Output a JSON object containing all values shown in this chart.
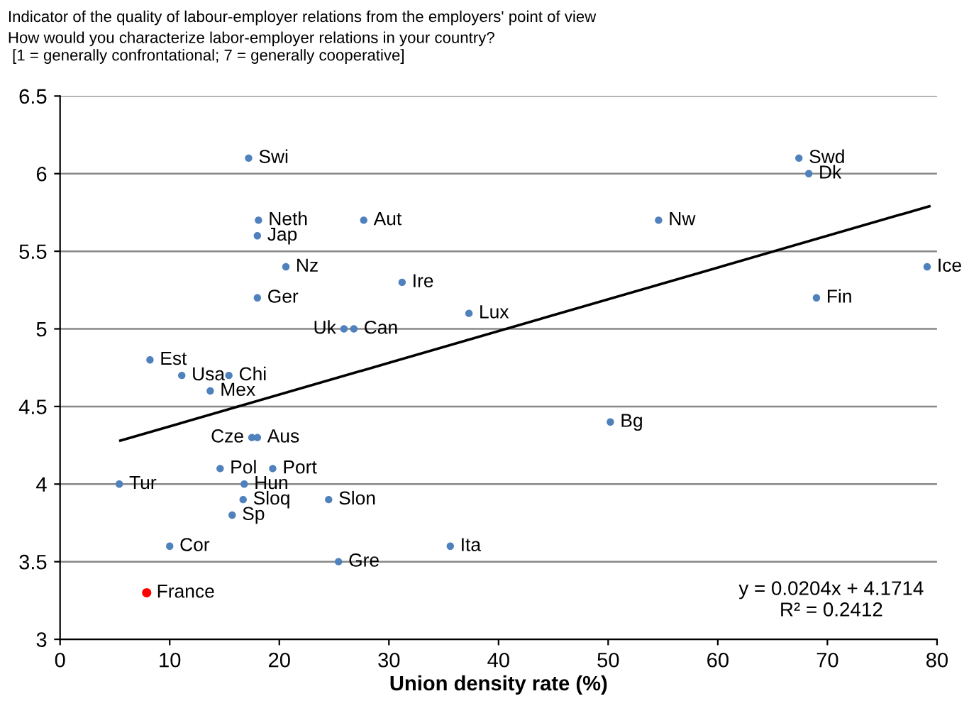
{
  "chart_data": {
    "type": "scatter",
    "title": "Indicator of the quality of labour-employer relations from the employers' point of view",
    "subtitle": "How would you characterize labor-employer relations in your country?\n [1 = generally confrontational; 7 = generally cooperative]",
    "xlabel": "Union density rate (%)",
    "xlim": [
      0,
      80
    ],
    "xticks": [
      0,
      10,
      20,
      30,
      40,
      50,
      60,
      70,
      80
    ],
    "ylim": [
      3,
      6.5
    ],
    "yticks": [
      3,
      3.5,
      4,
      4.5,
      5,
      5.5,
      6,
      6.5
    ],
    "grid": "y",
    "marker": "circle",
    "legend": false,
    "series": [
      {
        "color": "#4f81bd",
        "x": [
          17.2,
          67.4,
          68.3,
          18.1,
          27.7,
          54.6,
          18.0,
          20.6,
          79.1,
          31.2,
          18.0,
          69.0,
          37.3,
          25.9,
          26.8,
          8.2,
          11.1,
          15.4,
          13.7,
          50.2,
          17.5,
          18.0,
          14.6,
          19.4,
          5.4,
          16.8,
          16.7,
          24.5,
          15.7,
          10.0,
          35.6,
          25.4
        ],
        "values": [
          6.1,
          6.1,
          6.0,
          5.7,
          5.7,
          5.7,
          5.6,
          5.4,
          5.4,
          5.3,
          5.2,
          5.2,
          5.1,
          5.0,
          5.0,
          4.8,
          4.7,
          4.7,
          4.6,
          4.4,
          4.3,
          4.3,
          4.1,
          4.1,
          4.0,
          4.0,
          3.9,
          3.9,
          3.8,
          3.6,
          3.6,
          3.5
        ]
      },
      {
        "color": "#ff0000",
        "x": [
          7.9
        ],
        "values": [
          3.3
        ]
      },
      {
        "type": "line",
        "color": "#000000",
        "line_style": "solid",
        "marker": "none",
        "x": [
          5.5,
          79.3
        ],
        "values": [
          4.28,
          5.79
        ]
      }
    ],
    "annotations": [
      {
        "text": "Swi",
        "x": 17.2,
        "y": 6.1
      },
      {
        "text": "Swd",
        "x": 67.4,
        "y": 6.1
      },
      {
        "text": "Dk",
        "x": 68.3,
        "y": 6.0
      },
      {
        "text": "Neth",
        "x": 18.1,
        "y": 5.7
      },
      {
        "text": "Aut",
        "x": 27.7,
        "y": 5.7
      },
      {
        "text": "Nw",
        "x": 54.6,
        "y": 5.7
      },
      {
        "text": "Jap",
        "x": 18.0,
        "y": 5.6
      },
      {
        "text": "Nz",
        "x": 20.6,
        "y": 5.4
      },
      {
        "text": "Ice",
        "x": 79.1,
        "y": 5.4
      },
      {
        "text": "Ire",
        "x": 31.2,
        "y": 5.3
      },
      {
        "text": "Ger",
        "x": 18.0,
        "y": 5.2
      },
      {
        "text": "Fin",
        "x": 69.0,
        "y": 5.2
      },
      {
        "text": "Lux",
        "x": 37.3,
        "y": 5.1
      },
      {
        "text": "Uk",
        "x": 25.9,
        "y": 5.0
      },
      {
        "text": "Can",
        "x": 26.8,
        "y": 5.0
      },
      {
        "text": "Est",
        "x": 8.2,
        "y": 4.8
      },
      {
        "text": "Usa",
        "x": 11.1,
        "y": 4.7
      },
      {
        "text": "Chi",
        "x": 15.4,
        "y": 4.7
      },
      {
        "text": "Mex",
        "x": 13.7,
        "y": 4.6
      },
      {
        "text": "Bg",
        "x": 50.2,
        "y": 4.4
      },
      {
        "text": "Cze",
        "x": 17.5,
        "y": 4.3
      },
      {
        "text": "Aus",
        "x": 18.0,
        "y": 4.3
      },
      {
        "text": "Pol",
        "x": 14.6,
        "y": 4.1
      },
      {
        "text": "Port",
        "x": 19.4,
        "y": 4.1
      },
      {
        "text": "Tur",
        "x": 5.4,
        "y": 4.0
      },
      {
        "text": "Hun",
        "x": 16.8,
        "y": 4.0
      },
      {
        "text": "Sloq",
        "x": 16.7,
        "y": 3.9
      },
      {
        "text": "Slon",
        "x": 24.5,
        "y": 3.9
      },
      {
        "text": "Sp",
        "x": 15.7,
        "y": 3.8
      },
      {
        "text": "Cor",
        "x": 10.0,
        "y": 3.6
      },
      {
        "text": "Ita",
        "x": 35.6,
        "y": 3.6
      },
      {
        "text": "Gre",
        "x": 25.4,
        "y": 3.5
      },
      {
        "text": "France",
        "x": 7.9,
        "y": 3.3
      },
      "y = 0.0204x + 4.1714\nR² = 0.2412"
    ]
  }
}
